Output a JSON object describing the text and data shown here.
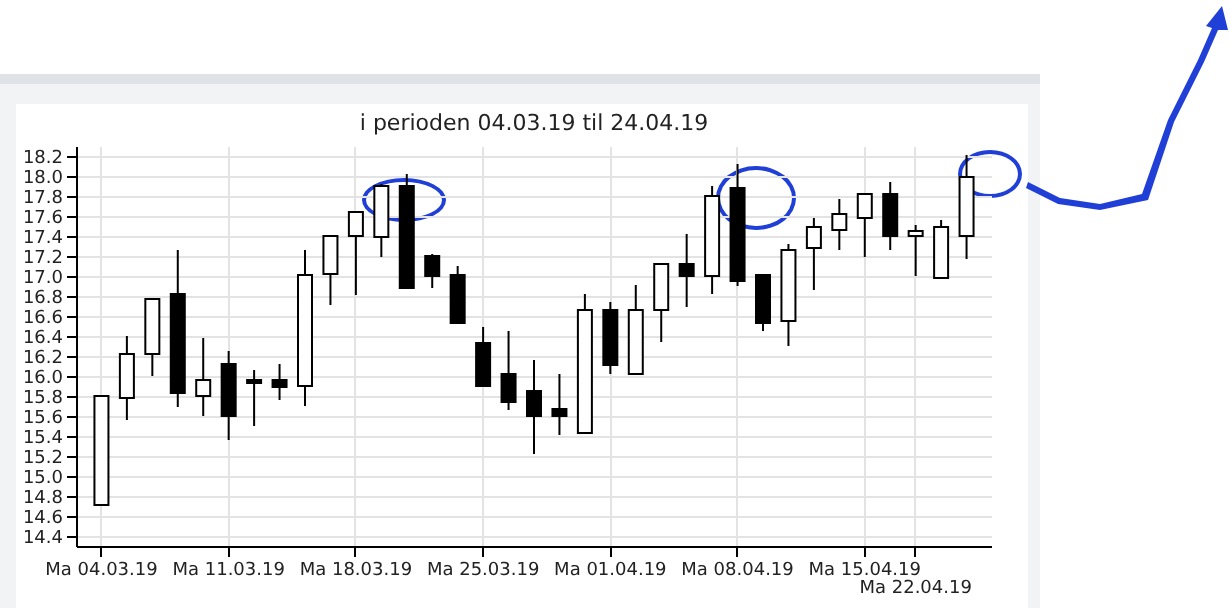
{
  "chart_data": {
    "type": "candlestick",
    "title": "i perioden 04.03.19 til 24.04.19",
    "categories": [
      "Ma 04.03.19",
      null,
      null,
      null,
      null,
      "Ma 11.03.19",
      null,
      null,
      null,
      null,
      "Ma 18.03.19",
      null,
      null,
      null,
      null,
      "Ma 25.03.19",
      null,
      null,
      null,
      null,
      "Ma 01.04.19",
      null,
      null,
      null,
      null,
      "Ma 08.04.19",
      null,
      null,
      null,
      null,
      "Ma 15.04.19",
      null,
      "Ma 22.04.19",
      null,
      null
    ],
    "ohlc": [
      [
        14.71,
        15.8,
        14.7,
        15.8
      ],
      [
        15.78,
        16.4,
        15.56,
        16.22
      ],
      [
        16.22,
        16.77,
        16.0,
        16.77
      ],
      [
        16.82,
        17.26,
        15.69,
        15.83
      ],
      [
        15.8,
        16.38,
        15.6,
        15.96
      ],
      [
        16.12,
        16.25,
        15.36,
        15.6
      ],
      [
        15.96,
        16.06,
        15.5,
        15.93
      ],
      [
        15.96,
        16.12,
        15.76,
        15.89
      ],
      [
        15.9,
        17.26,
        15.7,
        17.01
      ],
      [
        17.02,
        17.4,
        16.71,
        17.4
      ],
      [
        17.4,
        17.64,
        16.81,
        17.64
      ],
      [
        17.39,
        17.92,
        17.19,
        17.9
      ],
      [
        17.9,
        18.02,
        16.88,
        16.88
      ],
      [
        17.2,
        17.22,
        16.88,
        17.0
      ],
      [
        17.01,
        17.1,
        16.53,
        16.53
      ],
      [
        16.33,
        16.49,
        15.9,
        15.9
      ],
      [
        16.02,
        16.45,
        15.66,
        15.74
      ],
      [
        15.85,
        16.16,
        15.22,
        15.6
      ],
      [
        15.67,
        16.02,
        15.41,
        15.6
      ],
      [
        15.43,
        16.82,
        15.43,
        16.66
      ],
      [
        16.66,
        16.74,
        16.02,
        16.11
      ],
      [
        16.02,
        16.91,
        16.02,
        16.66
      ],
      [
        16.66,
        17.12,
        16.34,
        17.12
      ],
      [
        17.12,
        17.42,
        16.69,
        17.0
      ],
      [
        17.0,
        17.9,
        16.82,
        17.8
      ],
      [
        17.88,
        18.12,
        16.9,
        16.95
      ],
      [
        17.01,
        17.01,
        16.45,
        16.53
      ],
      [
        16.55,
        17.32,
        16.3,
        17.26
      ],
      [
        17.28,
        17.58,
        16.86,
        17.49
      ],
      [
        17.46,
        17.77,
        17.26,
        17.62
      ],
      [
        17.58,
        17.82,
        17.19,
        17.82
      ],
      [
        17.82,
        17.94,
        17.26,
        17.4
      ],
      [
        17.4,
        17.51,
        17.0,
        17.45
      ],
      [
        16.98,
        17.56,
        16.98,
        17.49
      ],
      [
        17.4,
        18.21,
        17.17,
        17.99
      ]
    ],
    "ylim": [
      14.3,
      18.3
    ],
    "yticks": [
      14.4,
      14.6,
      14.8,
      {
        "value": 15,
        "label": "15.0"
      },
      15.2,
      15.4,
      15.6,
      15.8,
      {
        "value": 16,
        "label": "16.0"
      },
      16.2,
      16.4,
      16.6,
      16.8,
      {
        "value": 17,
        "label": "17.0"
      },
      17.2,
      17.4,
      17.6,
      17.8,
      {
        "value": 18,
        "label": "18.0"
      },
      18.2
    ],
    "grid": true
  }
}
